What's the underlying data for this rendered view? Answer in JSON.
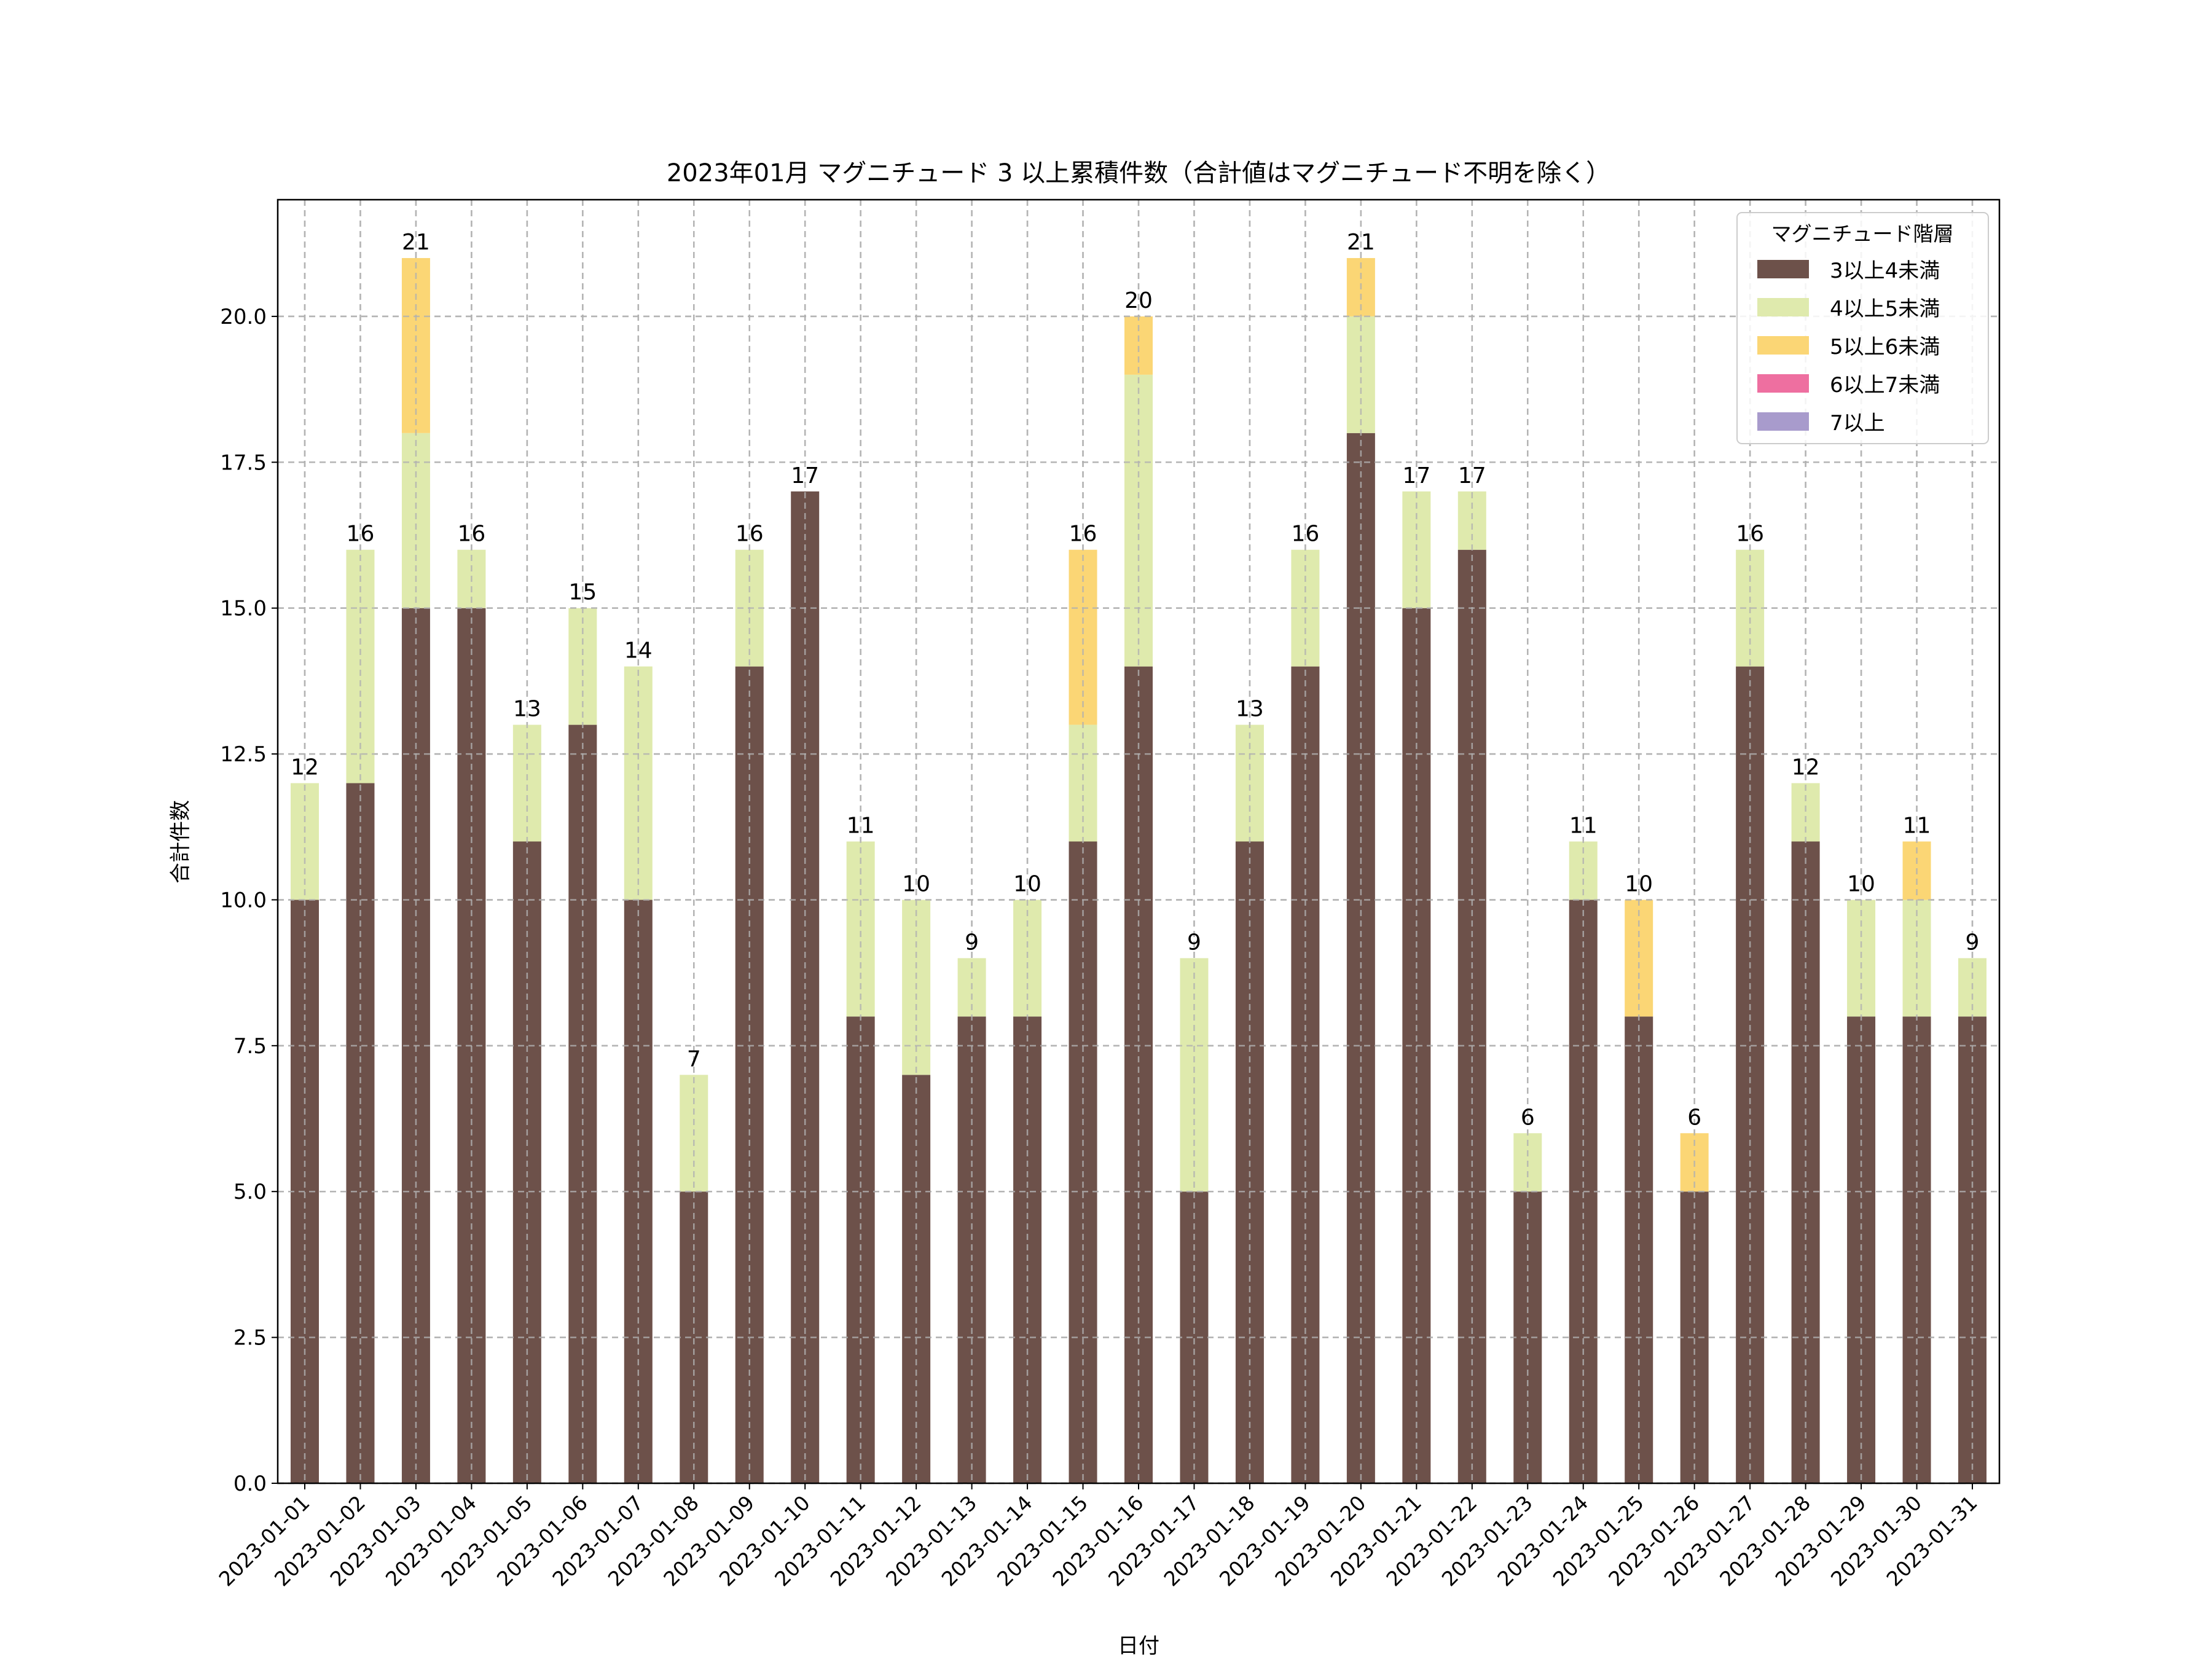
{
  "chart_data": {
    "type": "bar",
    "stacked": true,
    "title": "2023年01月 マグニチュード 3 以上累積件数（合計値はマグニチュード不明を除く）",
    "xlabel": "日付",
    "ylabel": "合計件数",
    "ylim": [
      0,
      22
    ],
    "yticks": [
      "0.0",
      "2.5",
      "5.0",
      "7.5",
      "10.0",
      "12.5",
      "15.0",
      "17.5",
      "20.0"
    ],
    "grid": true,
    "legend_title": "マグニチュード階層",
    "legend_position": "top-right",
    "categories": [
      "2023-01-01",
      "2023-01-02",
      "2023-01-03",
      "2023-01-04",
      "2023-01-05",
      "2023-01-06",
      "2023-01-07",
      "2023-01-08",
      "2023-01-09",
      "2023-01-10",
      "2023-01-11",
      "2023-01-12",
      "2023-01-13",
      "2023-01-14",
      "2023-01-15",
      "2023-01-16",
      "2023-01-17",
      "2023-01-18",
      "2023-01-19",
      "2023-01-20",
      "2023-01-21",
      "2023-01-22",
      "2023-01-23",
      "2023-01-24",
      "2023-01-25",
      "2023-01-26",
      "2023-01-27",
      "2023-01-28",
      "2023-01-29",
      "2023-01-30",
      "2023-01-31"
    ],
    "series": [
      {
        "name": "3以上4未満",
        "color": "#6d514a",
        "values": [
          10,
          12,
          15,
          15,
          11,
          13,
          10,
          5,
          14,
          17,
          8,
          7,
          8,
          8,
          11,
          14,
          5,
          11,
          14,
          18,
          15,
          16,
          5,
          10,
          8,
          5,
          14,
          11,
          8,
          8,
          8
        ]
      },
      {
        "name": "4以上5未満",
        "color": "#dfeaad",
        "values": [
          2,
          4,
          3,
          1,
          2,
          2,
          4,
          2,
          2,
          0,
          3,
          3,
          1,
          2,
          2,
          5,
          4,
          2,
          2,
          2,
          2,
          1,
          1,
          1,
          0,
          0,
          2,
          1,
          2,
          2,
          1
        ]
      },
      {
        "name": "5以上6未満",
        "color": "#fbd675",
        "values": [
          0,
          0,
          3,
          0,
          0,
          0,
          0,
          0,
          0,
          0,
          0,
          0,
          0,
          0,
          3,
          1,
          0,
          0,
          0,
          1,
          0,
          0,
          0,
          0,
          2,
          1,
          0,
          0,
          0,
          1,
          0
        ]
      },
      {
        "name": "6以上7未満",
        "color": "#ee6fa0",
        "values": [
          0,
          0,
          0,
          0,
          0,
          0,
          0,
          0,
          0,
          0,
          0,
          0,
          0,
          0,
          0,
          0,
          0,
          0,
          0,
          0,
          0,
          0,
          0,
          0,
          0,
          0,
          0,
          0,
          0,
          0,
          0
        ]
      },
      {
        "name": "7以上",
        "color": "#a89bcc",
        "values": [
          0,
          0,
          0,
          0,
          0,
          0,
          0,
          0,
          0,
          0,
          0,
          0,
          0,
          0,
          0,
          0,
          0,
          0,
          0,
          0,
          0,
          0,
          0,
          0,
          0,
          0,
          0,
          0,
          0,
          0,
          0
        ]
      }
    ],
    "totals": [
      "12",
      "16",
      "21",
      "16",
      "13",
      "15",
      "14",
      "7",
      "16",
      "17",
      "11",
      "10",
      "9",
      "10",
      "16",
      "20",
      "9",
      "13",
      "16",
      "21",
      "17",
      "17",
      "6",
      "11",
      "10",
      "6",
      "16",
      "12",
      "10",
      "11",
      "9"
    ]
  }
}
